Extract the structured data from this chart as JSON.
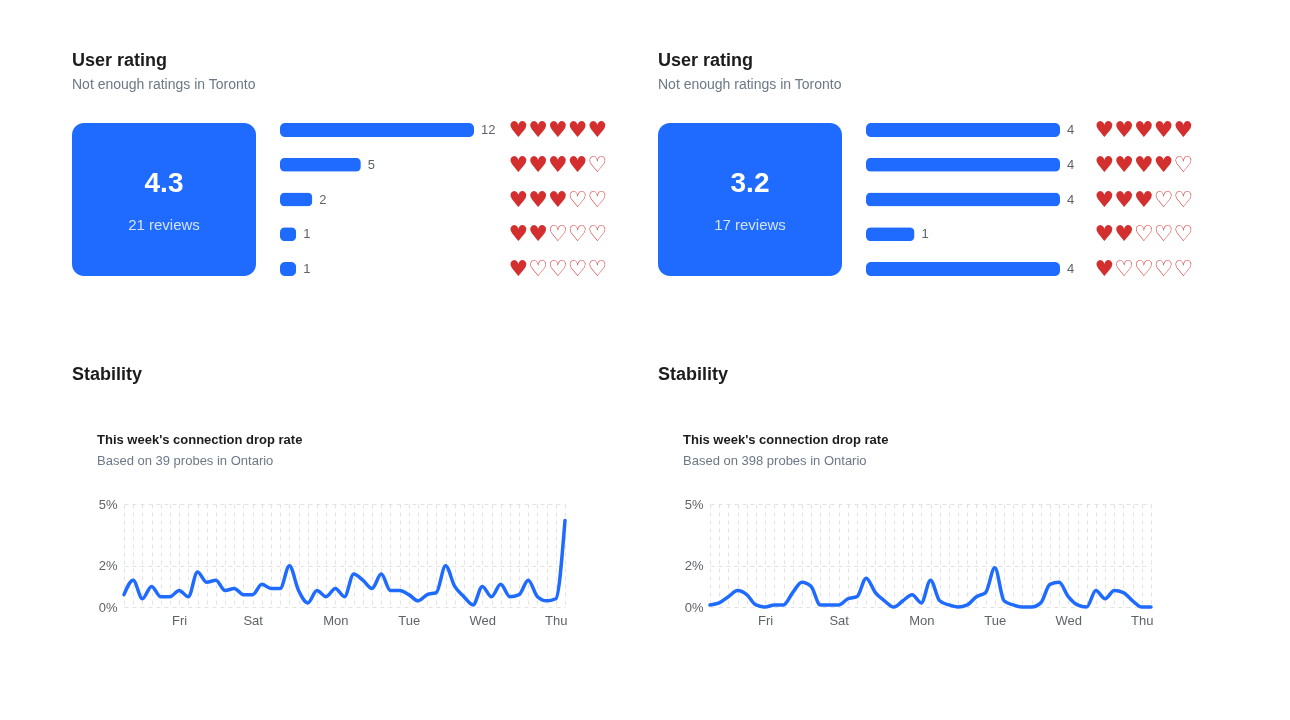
{
  "chart_data": [
    {
      "type": "other",
      "title": "User rating",
      "subtitle": "Not enough ratings in Toronto",
      "annotations": [
        "4.3",
        "21 reviews"
      ],
      "color": "#1f6bff"
    },
    {
      "type": "bar",
      "orientation": "horizontal",
      "categories": [
        "♥♥♥♥♥",
        "♥♥♥♥♡",
        "♥♥♥♡♡",
        "♥♥♡♡♡",
        "♥♡♡♡♡"
      ],
      "values": [
        12,
        5,
        2,
        1,
        1
      ],
      "color": "#1f6bff",
      "data_labels": true,
      "tick_labels": "y"
    },
    {
      "type": "other",
      "title": "User rating",
      "subtitle": "Not enough ratings in Toronto",
      "annotations": [
        "3.2",
        "17 reviews"
      ],
      "color": "#1f6bff"
    },
    {
      "type": "bar",
      "orientation": "horizontal",
      "categories": [
        "♥♥♥♥♥",
        "♥♥♥♥♡",
        "♥♥♥♡♡",
        "♥♥♡♡♡",
        "♥♡♡♡♡"
      ],
      "values": [
        4,
        4,
        4,
        1,
        4
      ],
      "color": "#1f6bff",
      "data_labels": true,
      "tick_labels": "y"
    },
    {
      "type": "line",
      "title": "This week's connection drop rate",
      "subtitle": "Based on 39 probes in Ontario",
      "annotations": [
        "Stability"
      ],
      "categories": [
        null,
        null,
        null,
        null,
        null,
        null,
        "Fri",
        null,
        null,
        null,
        null,
        null,
        null,
        null,
        "Sat",
        null,
        null,
        null,
        null,
        null,
        null,
        null,
        null,
        "Mon",
        null,
        null,
        null,
        null,
        null,
        null,
        null,
        "Tue",
        null,
        null,
        null,
        null,
        null,
        null,
        null,
        "Wed",
        null,
        null,
        null,
        null,
        null,
        null,
        null,
        "Thu",
        null
      ],
      "values": [
        0.6,
        1.3,
        0.4,
        1.0,
        0.5,
        0.5,
        0.8,
        0.5,
        1.7,
        1.2,
        1.3,
        0.8,
        0.9,
        0.6,
        0.6,
        1.1,
        0.9,
        0.9,
        2.0,
        0.8,
        0.2,
        0.8,
        0.5,
        0.9,
        0.5,
        1.6,
        1.3,
        0.9,
        1.6,
        0.8,
        0.8,
        0.6,
        0.3,
        0.6,
        0.7,
        2.0,
        1.0,
        0.5,
        0.1,
        1.0,
        0.5,
        1.1,
        0.5,
        0.6,
        1.3,
        0.5,
        0.3,
        0.4,
        4.2
      ],
      "color": "#1f6bff",
      "ylim": [
        0,
        5
      ],
      "yticks": [
        {
          "value": 0,
          "label": "0%"
        },
        {
          "value": 2,
          "label": "2%"
        },
        {
          "value": 5,
          "label": "5%"
        }
      ],
      "grid": true
    },
    {
      "type": "line",
      "title": "This week's connection drop rate",
      "subtitle": "Based on 398 probes in Ontario",
      "annotations": [
        "Stability"
      ],
      "categories": [
        null,
        null,
        null,
        null,
        null,
        null,
        "Fri",
        null,
        null,
        null,
        null,
        null,
        null,
        null,
        "Sat",
        null,
        null,
        null,
        null,
        null,
        null,
        null,
        null,
        "Mon",
        null,
        null,
        null,
        null,
        null,
        null,
        null,
        "Tue",
        null,
        null,
        null,
        null,
        null,
        null,
        null,
        "Wed",
        null,
        null,
        null,
        null,
        null,
        null,
        null,
        "Thu",
        null
      ],
      "values": [
        0.1,
        0.2,
        0.5,
        0.8,
        0.6,
        0.1,
        0.0,
        0.1,
        0.1,
        0.7,
        1.2,
        1.0,
        0.1,
        0.1,
        0.1,
        0.4,
        0.5,
        1.4,
        0.7,
        0.3,
        0.0,
        0.3,
        0.6,
        0.2,
        1.3,
        0.3,
        0.1,
        0.0,
        0.1,
        0.5,
        0.7,
        1.9,
        0.3,
        0.1,
        0.0,
        0.0,
        0.2,
        1.1,
        1.2,
        0.5,
        0.1,
        0.0,
        0.8,
        0.4,
        0.8,
        0.7,
        0.3,
        0.0,
        0.0
      ],
      "color": "#1f6bff",
      "ylim": [
        0,
        5
      ],
      "yticks": [
        {
          "value": 0,
          "label": "0%"
        },
        {
          "value": 2,
          "label": "2%"
        },
        {
          "value": 5,
          "label": "5%"
        }
      ],
      "grid": true
    }
  ]
}
